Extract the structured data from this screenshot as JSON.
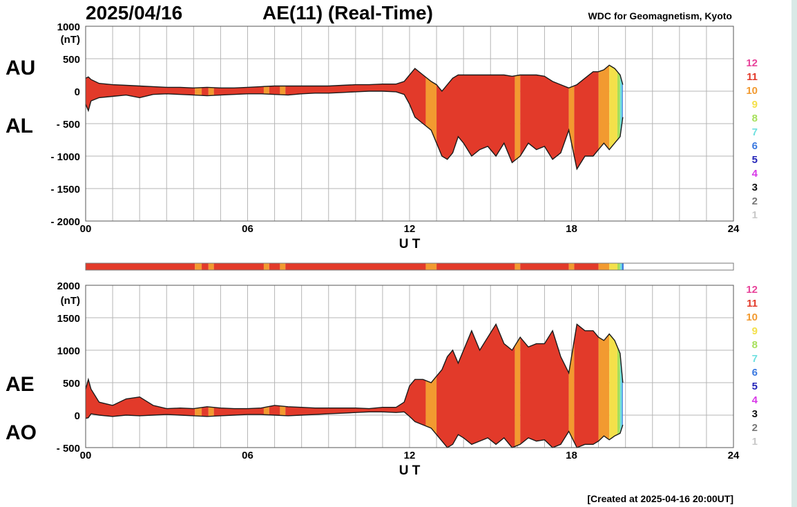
{
  "header": {
    "date": "2025/04/16",
    "title": "AE(11) (Real-Time)",
    "credit": "WDC for Geomagnetism, Kyoto"
  },
  "footer": {
    "created": "[Created at 2025-04-16 20:00UT]"
  },
  "colors": {
    "fill": "#e8452c",
    "fill_light": "#f59a3a",
    "line": "#1a1a1a",
    "grid": "#b5b5b5"
  },
  "legend": {
    "items": [
      {
        "label": "12",
        "color": "#e8439a"
      },
      {
        "label": "11",
        "color": "#e23a2a"
      },
      {
        "label": "10",
        "color": "#f29a30"
      },
      {
        "label": "9",
        "color": "#f4e04a"
      },
      {
        "label": "8",
        "color": "#a6e05a"
      },
      {
        "label": "7",
        "color": "#6fe0e0"
      },
      {
        "label": "6",
        "color": "#3a78e0"
      },
      {
        "label": "5",
        "color": "#2424b8"
      },
      {
        "label": "4",
        "color": "#d838e8"
      },
      {
        "label": "3",
        "color": "#111111"
      },
      {
        "label": "2",
        "color": "#777777"
      },
      {
        "label": "1",
        "color": "#c8c8c8"
      }
    ]
  },
  "chart_data": [
    {
      "type": "area",
      "name": "AU/AL",
      "ylabel": "(nT)",
      "xlabel": "U T",
      "series_labels": [
        "AU",
        "AL"
      ],
      "x_ticks": [
        "00",
        "06",
        "12",
        "18",
        "24"
      ],
      "y_ticks": [
        "1000",
        "500",
        "0",
        "- 500",
        "- 1000",
        "- 1500",
        "- 2000"
      ],
      "y_tick_values": [
        1000,
        500,
        0,
        -500,
        -1000,
        -1500,
        -2000
      ],
      "ylim": [
        -2000,
        1000
      ],
      "xlim": [
        0,
        24
      ],
      "grid": true,
      "x": [
        0,
        0.1,
        0.2,
        0.5,
        1,
        1.5,
        2,
        2.5,
        3,
        3.5,
        4,
        4.5,
        5,
        5.5,
        6,
        6.5,
        7,
        7.5,
        8,
        8.5,
        9,
        9.5,
        10,
        10.5,
        11,
        11.5,
        11.8,
        12,
        12.2,
        12.5,
        12.8,
        13,
        13.2,
        13.4,
        13.6,
        13.8,
        14,
        14.3,
        14.6,
        14.9,
        15.2,
        15.5,
        15.8,
        16.1,
        16.4,
        16.7,
        17,
        17.3,
        17.6,
        17.9,
        18.2,
        18.5,
        18.8,
        19,
        19.2,
        19.4,
        19.6,
        19.8,
        19.9
      ],
      "upper": [
        200,
        220,
        180,
        120,
        100,
        90,
        80,
        70,
        60,
        60,
        50,
        60,
        50,
        50,
        60,
        70,
        80,
        80,
        80,
        80,
        80,
        90,
        100,
        100,
        110,
        110,
        150,
        250,
        350,
        250,
        150,
        100,
        0,
        100,
        200,
        250,
        250,
        250,
        250,
        250,
        250,
        250,
        230,
        250,
        250,
        250,
        230,
        150,
        100,
        50,
        100,
        200,
        300,
        300,
        330,
        400,
        350,
        250,
        100
      ],
      "lower": [
        -200,
        -300,
        -150,
        -100,
        -80,
        -60,
        -100,
        -50,
        -40,
        -50,
        -60,
        -70,
        -60,
        -50,
        -40,
        -40,
        -50,
        -60,
        -40,
        -30,
        -30,
        -20,
        -10,
        0,
        0,
        -10,
        -50,
        -200,
        -400,
        -500,
        -600,
        -800,
        -1000,
        -1050,
        -950,
        -700,
        -800,
        -1000,
        -900,
        -850,
        -1000,
        -800,
        -1100,
        -1000,
        -800,
        -900,
        -850,
        -1050,
        -950,
        -600,
        -1200,
        -1000,
        -1000,
        -900,
        -800,
        -900,
        -800,
        -700,
        -400
      ],
      "hour_color_bands": [
        {
          "start": 0,
          "end": 4.05,
          "level": "11"
        },
        {
          "start": 4.05,
          "end": 4.3,
          "level": "10"
        },
        {
          "start": 4.3,
          "end": 4.55,
          "level": "11"
        },
        {
          "start": 4.55,
          "end": 4.75,
          "level": "10"
        },
        {
          "start": 4.75,
          "end": 6.6,
          "level": "11"
        },
        {
          "start": 6.6,
          "end": 6.8,
          "level": "10"
        },
        {
          "start": 6.8,
          "end": 7.2,
          "level": "11"
        },
        {
          "start": 7.2,
          "end": 7.4,
          "level": "10"
        },
        {
          "start": 7.4,
          "end": 12.6,
          "level": "11"
        },
        {
          "start": 12.6,
          "end": 13.0,
          "level": "10"
        },
        {
          "start": 13.0,
          "end": 15.9,
          "level": "11"
        },
        {
          "start": 15.9,
          "end": 16.1,
          "level": "10"
        },
        {
          "start": 16.1,
          "end": 17.9,
          "level": "11"
        },
        {
          "start": 17.9,
          "end": 18.1,
          "level": "10"
        },
        {
          "start": 18.1,
          "end": 19.0,
          "level": "11"
        },
        {
          "start": 19.0,
          "end": 19.4,
          "level": "10"
        },
        {
          "start": 19.4,
          "end": 19.7,
          "level": "9"
        },
        {
          "start": 19.7,
          "end": 19.8,
          "level": "8"
        },
        {
          "start": 19.8,
          "end": 19.87,
          "level": "7"
        },
        {
          "start": 19.87,
          "end": 19.93,
          "level": "6"
        }
      ]
    },
    {
      "type": "area",
      "name": "AE/AO",
      "ylabel": "(nT)",
      "xlabel": "U T",
      "series_labels": [
        "AE",
        "AO"
      ],
      "x_ticks": [
        "00",
        "06",
        "12",
        "18",
        "24"
      ],
      "y_ticks": [
        "2000",
        "1500",
        "1000",
        "500",
        "0",
        "- 500"
      ],
      "y_tick_values": [
        2000,
        1500,
        1000,
        500,
        0,
        -500
      ],
      "ylim": [
        -500,
        2000
      ],
      "xlim": [
        0,
        24
      ],
      "grid": true,
      "x": [
        0,
        0.1,
        0.2,
        0.5,
        1,
        1.5,
        2,
        2.5,
        3,
        3.5,
        4,
        4.5,
        5,
        5.5,
        6,
        6.5,
        7,
        7.5,
        8,
        8.5,
        9,
        9.5,
        10,
        10.5,
        11,
        11.5,
        11.8,
        12,
        12.2,
        12.5,
        12.8,
        13,
        13.2,
        13.4,
        13.6,
        13.8,
        14,
        14.3,
        14.6,
        14.9,
        15.2,
        15.5,
        15.8,
        16.1,
        16.4,
        16.7,
        17,
        17.3,
        17.6,
        17.9,
        18.2,
        18.5,
        18.8,
        19,
        19.2,
        19.4,
        19.6,
        19.8,
        19.9
      ],
      "upper": [
        400,
        550,
        400,
        200,
        150,
        250,
        280,
        150,
        100,
        110,
        100,
        130,
        110,
        100,
        100,
        110,
        150,
        130,
        120,
        110,
        110,
        110,
        110,
        100,
        120,
        120,
        200,
        450,
        550,
        550,
        500,
        600,
        700,
        900,
        1000,
        800,
        1000,
        1300,
        1000,
        1200,
        1400,
        1100,
        1000,
        1200,
        1050,
        1100,
        1100,
        1300,
        900,
        650,
        1400,
        1300,
        1300,
        1200,
        1150,
        1250,
        1150,
        950,
        500
      ],
      "lower": [
        -50,
        -40,
        20,
        0,
        -20,
        0,
        -10,
        0,
        10,
        0,
        -10,
        -20,
        -10,
        0,
        10,
        10,
        0,
        -10,
        0,
        10,
        20,
        30,
        40,
        50,
        50,
        40,
        50,
        -20,
        -100,
        -150,
        -200,
        -300,
        -400,
        -500,
        -450,
        -300,
        -350,
        -450,
        -400,
        -350,
        -450,
        -350,
        -500,
        -450,
        -350,
        -400,
        -380,
        -500,
        -450,
        -250,
        -500,
        -450,
        -450,
        -400,
        -320,
        -380,
        -320,
        -280,
        -150
      ],
      "hour_color_bands": [
        {
          "start": 0,
          "end": 4.05,
          "level": "11"
        },
        {
          "start": 4.05,
          "end": 4.3,
          "level": "10"
        },
        {
          "start": 4.3,
          "end": 4.55,
          "level": "11"
        },
        {
          "start": 4.55,
          "end": 4.75,
          "level": "10"
        },
        {
          "start": 4.75,
          "end": 6.6,
          "level": "11"
        },
        {
          "start": 6.6,
          "end": 6.8,
          "level": "10"
        },
        {
          "start": 6.8,
          "end": 7.2,
          "level": "11"
        },
        {
          "start": 7.2,
          "end": 7.4,
          "level": "10"
        },
        {
          "start": 7.4,
          "end": 12.6,
          "level": "11"
        },
        {
          "start": 12.6,
          "end": 13.0,
          "level": "10"
        },
        {
          "start": 13.0,
          "end": 15.9,
          "level": "11"
        },
        {
          "start": 15.9,
          "end": 16.1,
          "level": "10"
        },
        {
          "start": 16.1,
          "end": 17.9,
          "level": "11"
        },
        {
          "start": 17.9,
          "end": 18.1,
          "level": "10"
        },
        {
          "start": 18.1,
          "end": 19.0,
          "level": "11"
        },
        {
          "start": 19.0,
          "end": 19.4,
          "level": "10"
        },
        {
          "start": 19.4,
          "end": 19.7,
          "level": "9"
        },
        {
          "start": 19.7,
          "end": 19.8,
          "level": "8"
        },
        {
          "start": 19.8,
          "end": 19.87,
          "level": "7"
        },
        {
          "start": 19.87,
          "end": 19.93,
          "level": "6"
        }
      ]
    }
  ]
}
